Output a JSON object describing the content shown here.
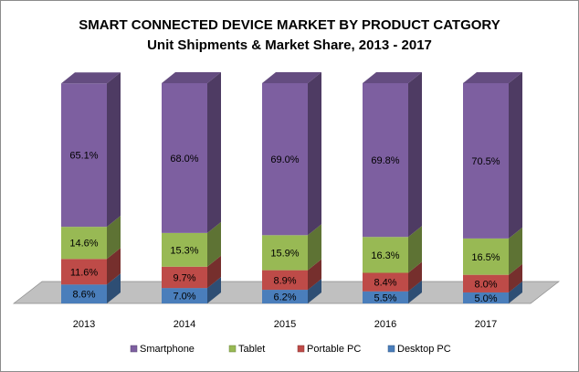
{
  "chart_data": {
    "type": "bar",
    "stacked": true,
    "percent_stacked": true,
    "three_d": true,
    "title": "SMART CONNECTED DEVICE MARKET BY PRODUCT CATGORY",
    "subtitle": "Unit Shipments & Market Share, 2013 - 2017",
    "categories": [
      "2013",
      "2014",
      "2015",
      "2016",
      "2017"
    ],
    "series": [
      {
        "name": "Desktop PC",
        "values": [
          8.6,
          7.0,
          6.2,
          5.5,
          5.0
        ],
        "labels": [
          "8.6%",
          "7.0%",
          "6.2%",
          "5.5%",
          "5.0%"
        ],
        "color": "#4a7ebb"
      },
      {
        "name": "Portable PC",
        "values": [
          11.6,
          9.7,
          8.9,
          8.4,
          8.0
        ],
        "labels": [
          "11.6%",
          "9.7%",
          "8.9%",
          "8.4%",
          "8.0%"
        ],
        "color": "#be4b48"
      },
      {
        "name": "Tablet",
        "values": [
          14.6,
          15.3,
          15.9,
          16.3,
          16.5
        ],
        "labels": [
          "14.6%",
          "15.3%",
          "15.9%",
          "16.3%",
          "16.5%"
        ],
        "color": "#98b954"
      },
      {
        "name": "Smartphone",
        "values": [
          65.1,
          68.0,
          69.0,
          69.8,
          70.5
        ],
        "labels": [
          "65.1%",
          "68.0%",
          "69.0%",
          "69.8%",
          "70.5%"
        ],
        "color": "#7d5fa0"
      }
    ],
    "legend": {
      "position": "bottom",
      "order": [
        "Smartphone",
        "Tablet",
        "Portable PC",
        "Desktop PC"
      ]
    },
    "ylim": [
      0,
      100
    ],
    "grid": false,
    "floor_color": "#c0c0c0"
  }
}
